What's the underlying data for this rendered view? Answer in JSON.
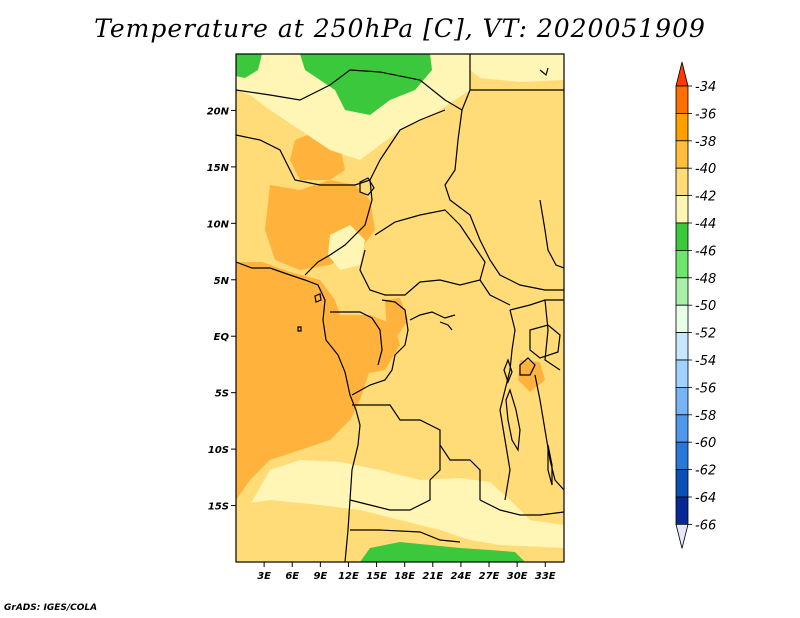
{
  "title": "Temperature at 250hPa [C], VT: 2020051909",
  "credit": "GrADS: IGES/COLA",
  "lat_ticks": [
    "20N",
    "15N",
    "10N",
    "5N",
    "EQ",
    "5S",
    "10S",
    "15S"
  ],
  "lat_values": [
    20,
    15,
    10,
    5,
    0,
    -5,
    -10,
    -15
  ],
  "lon_ticks": [
    "3E",
    "6E",
    "9E",
    "12E",
    "15E",
    "18E",
    "21E",
    "24E",
    "27E",
    "30E",
    "33E"
  ],
  "lon_values": [
    3,
    6,
    9,
    12,
    15,
    18,
    21,
    24,
    27,
    30,
    33
  ],
  "extent": {
    "lon_min": 0,
    "lon_max": 35,
    "lat_min": -20,
    "lat_max": 25
  },
  "colorbar": {
    "labels": [
      "-34",
      "-36",
      "-38",
      "-40",
      "-42",
      "-44",
      "-46",
      "-48",
      "-50",
      "-52",
      "-54",
      "-56",
      "-58",
      "-60",
      "-62",
      "-64",
      "-66"
    ],
    "colors": [
      "#ff3a00",
      "#ff6e00",
      "#ffa000",
      "#ffbe3c",
      "#ffdc78",
      "#fff5b4",
      "#3cc83c",
      "#6ee66e",
      "#a8f0a8",
      "#e6ffe6",
      "#c8e6ff",
      "#a0d2ff",
      "#78b4f5",
      "#5096eb",
      "#2878d7",
      "#0a50b4",
      "#082896",
      "#000064"
    ],
    "over_color": "#ff3a00",
    "under_color": "#e6e6ff"
  },
  "field_colors": {
    "c38": "#ffb23c",
    "c40": "#ffdc78",
    "c42": "#fff5b4",
    "c44": "#3cc83c"
  }
}
